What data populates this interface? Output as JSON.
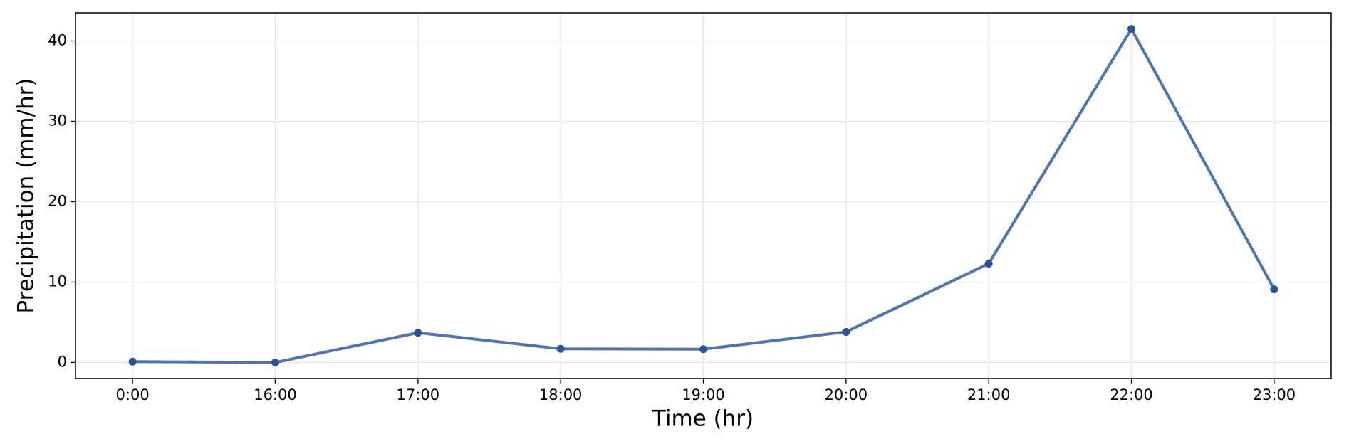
{
  "chart_data": {
    "type": "line",
    "x_label": "Time (hr)",
    "y_label": "Precipitation (mm/hr)",
    "categories": [
      "0:00",
      "16:00",
      "17:00",
      "18:00",
      "19:00",
      "20:00",
      "21:00",
      "22:00",
      "23:00"
    ],
    "series": [
      {
        "name": "Precipitation",
        "color": "#5274a8",
        "marker_color": "#2f5290",
        "values": [
          0.1,
          0,
          3.7,
          1.7,
          1.65,
          3.8,
          12.3,
          41.5,
          9.1
        ]
      }
    ],
    "ylim": [
      -2,
      43.5
    ],
    "yticks": [
      0,
      10,
      20,
      30,
      40
    ],
    "grid": true
  }
}
